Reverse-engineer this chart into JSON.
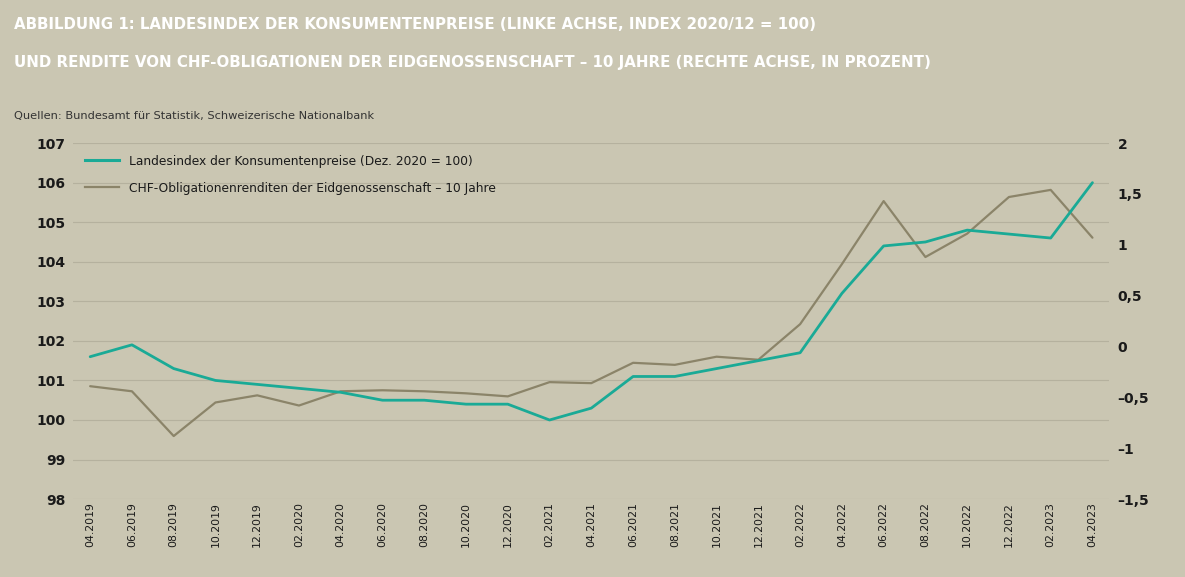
{
  "title_line1": "ABBILDUNG 1: LANDESINDEX DER KONSUMENTENPREISE (LINKE ACHSE, INDEX 2020/12 = 100)",
  "title_line2": "UND RENDITE VON CHF-OBLIGATIONEN DER EIDGENOSSENSCHAFT – 10 JAHRE (RECHTE ACHSE, IN PROZENT)",
  "source": "Quellen: Bundesamt für Statistik, Schweizerische Nationalbank",
  "header_bg": "#8c8367",
  "chart_bg": "#cac6b2",
  "legend1": "Landesindex der Konsumentenpreise (Dez. 2020 = 100)",
  "legend2": "CHF-Obligationenrenditen der Eidgenossenschaft – 10 Jahre",
  "color_cpi": "#1aaa96",
  "color_bond": "#8b8469",
  "xlabels": [
    "04.2019",
    "06.2019",
    "08.2019",
    "10.2019",
    "12.2019",
    "02.2020",
    "04.2020",
    "06.2020",
    "08.2020",
    "10.2020",
    "12.2020",
    "02.2021",
    "04.2021",
    "06.2021",
    "08.2021",
    "10.2021",
    "12.2021",
    "02.2022",
    "04.2022",
    "06.2022",
    "08.2022",
    "10.2022",
    "12.2022",
    "02.2023",
    "04.2023"
  ],
  "cpi_values": [
    101.6,
    101.9,
    101.3,
    101.0,
    100.9,
    100.8,
    100.7,
    100.5,
    100.5,
    100.4,
    100.4,
    100.0,
    100.3,
    101.1,
    101.1,
    101.3,
    101.5,
    101.7,
    103.2,
    104.4,
    104.5,
    104.8,
    104.7,
    104.6,
    106.0
  ],
  "bond_values": [
    -0.39,
    -0.44,
    -0.88,
    -0.55,
    -0.48,
    -0.58,
    -0.44,
    -0.43,
    -0.44,
    -0.46,
    -0.49,
    -0.35,
    -0.36,
    -0.16,
    -0.18,
    -0.1,
    -0.13,
    0.22,
    0.81,
    1.43,
    0.88,
    1.11,
    1.47,
    1.54,
    1.07
  ],
  "ylim_left": [
    98,
    107
  ],
  "ylim_right": [
    -1.5,
    2.0
  ],
  "yticks_left": [
    98,
    99,
    100,
    101,
    102,
    103,
    104,
    105,
    106,
    107
  ],
  "yticks_right": [
    -1.5,
    -1.0,
    -0.5,
    0.0,
    0.5,
    1.0,
    1.5,
    2.0
  ],
  "ytick_labels_right": [
    "–1,5",
    "–1",
    "–0,5",
    "0",
    "0,5",
    "1",
    "1,5",
    "2"
  ],
  "grid_color": "#b5b19e",
  "tick_label_color": "#1a1a1a",
  "title_color": "#ffffff",
  "source_color": "#333333"
}
